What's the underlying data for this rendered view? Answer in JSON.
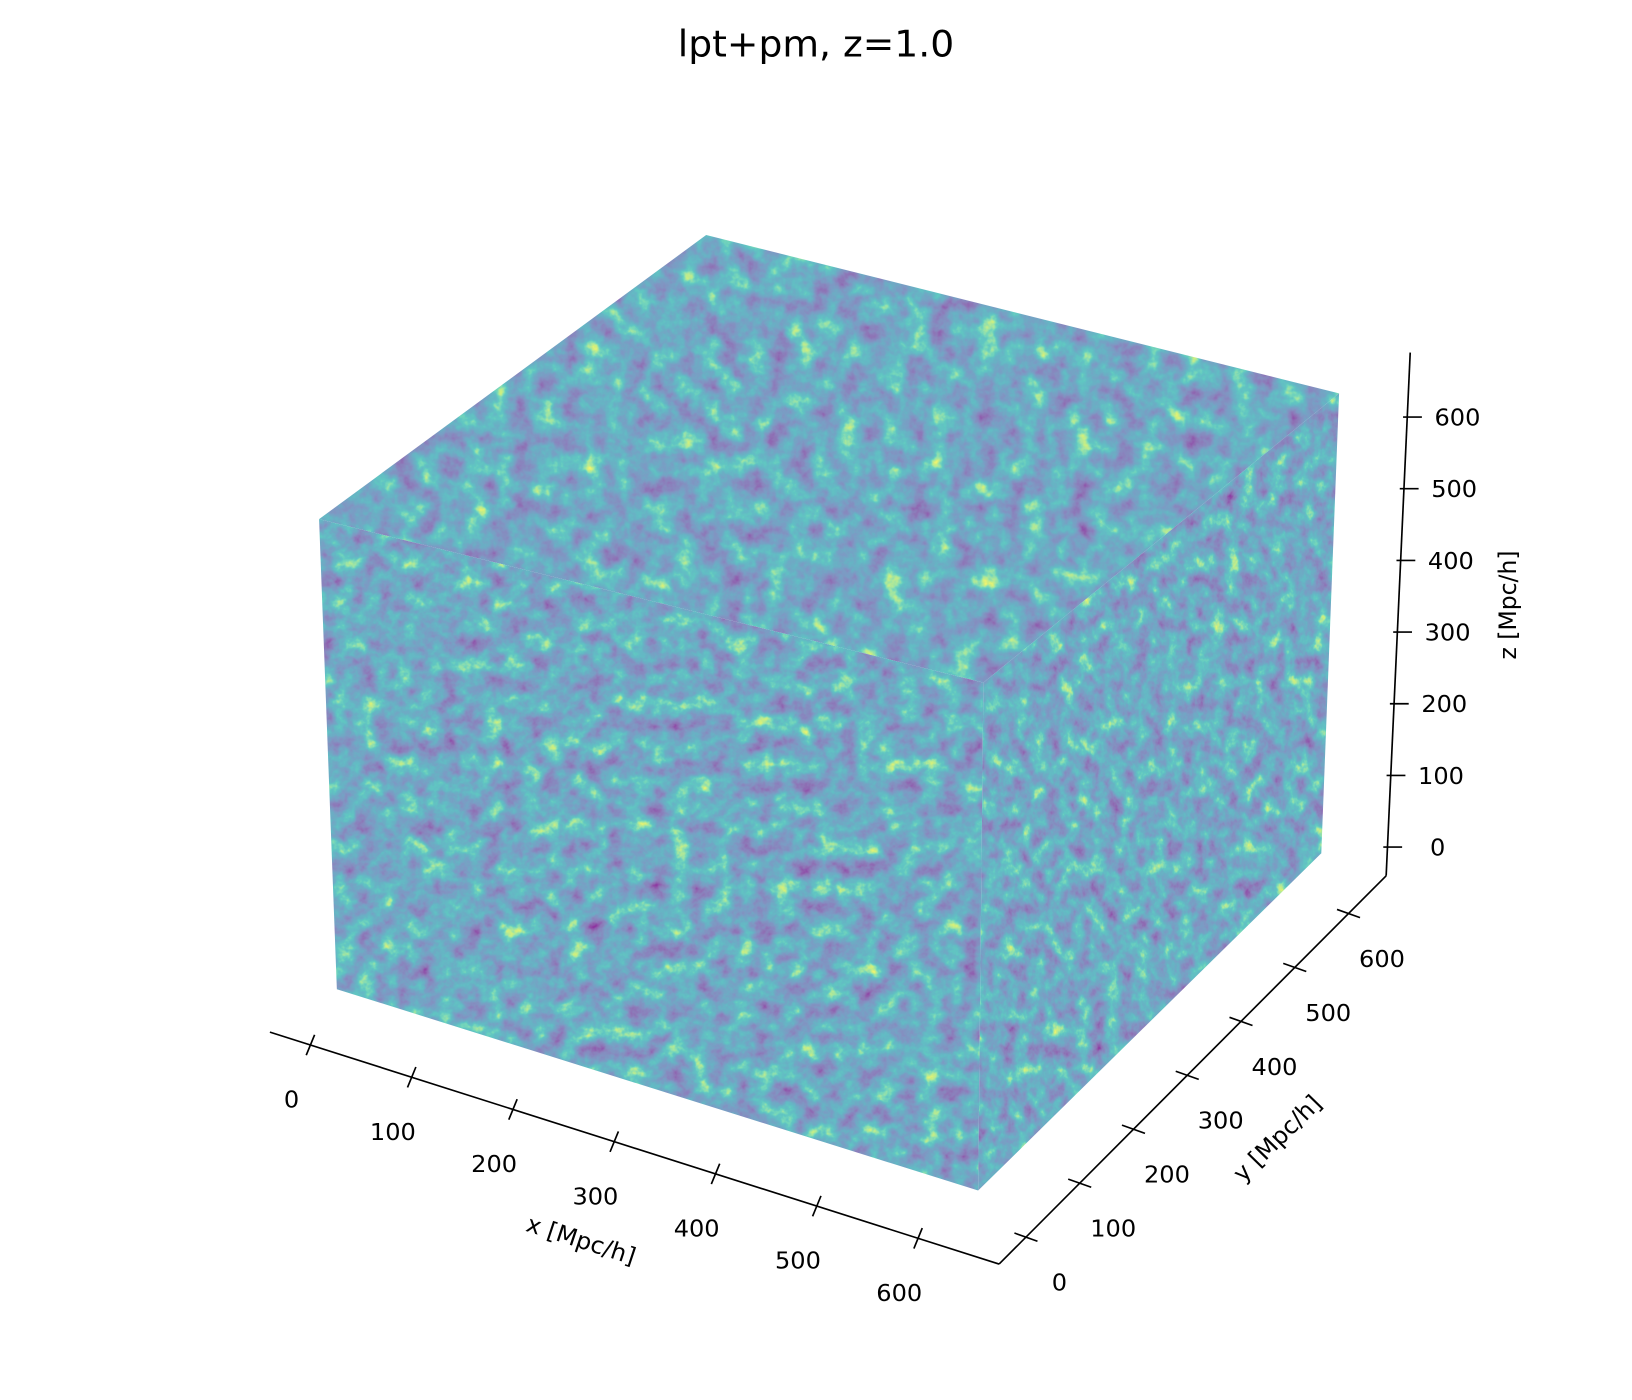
{
  "chart_data": {
    "type": "volume3d",
    "title": "lpt+pm, z=1.0",
    "xlabel": "x [Mpc/h]",
    "ylabel": "y [Mpc/h]",
    "zlabel": "z [Mpc/h]",
    "xlim": [
      -40,
      680
    ],
    "ylim": [
      -50,
      670
    ],
    "zlim": [
      -40,
      690
    ],
    "xticks": [
      0,
      100,
      200,
      300,
      400,
      500,
      600
    ],
    "yticks": [
      0,
      100,
      200,
      300,
      400,
      500,
      600
    ],
    "zticks": [
      0,
      100,
      200,
      300,
      400,
      500,
      600
    ],
    "colormap": "viridis"
  }
}
